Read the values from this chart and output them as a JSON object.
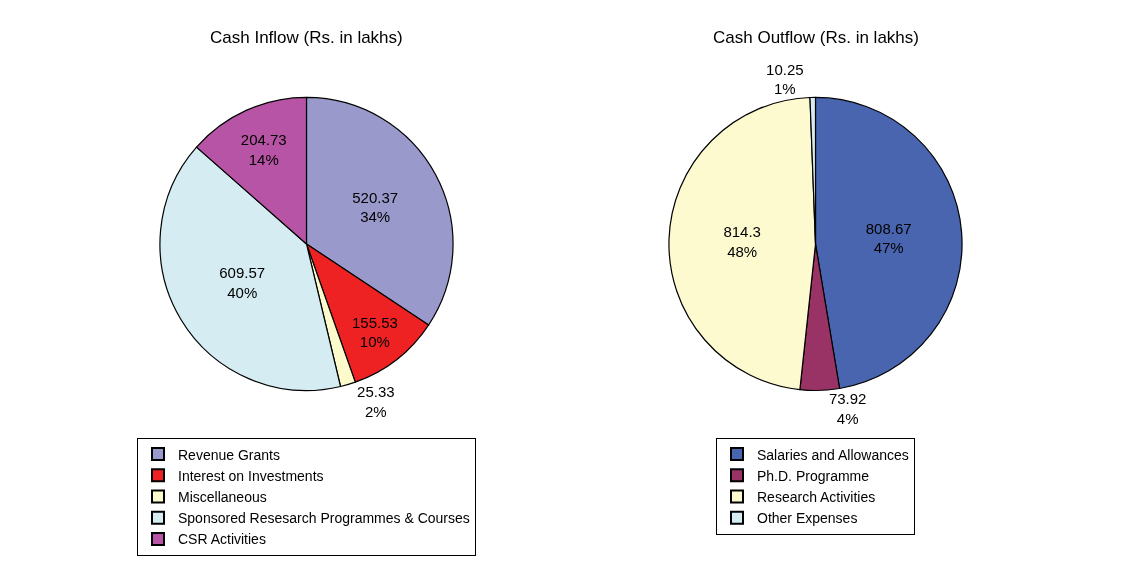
{
  "chart_data": [
    {
      "type": "pie",
      "title": "Cash Inflow (Rs. in lakhs)",
      "categories": [
        "Revenue Grants",
        "Interest on Investments",
        "Miscellaneous",
        "Sponsored Resesarch Programmes & Courses",
        "CSR Activities"
      ],
      "values": [
        520.37,
        155.53,
        25.33,
        609.57,
        204.73
      ],
      "value_labels": [
        "520.37\n34%",
        "155.53\n10%",
        "25.33\n2%",
        "609.57\n40%",
        "204.73\n14%"
      ],
      "colors": [
        "#9999cc",
        "#ee2222",
        "#fdfbcc",
        "#d4ecf2",
        "#b854a6"
      ],
      "legend": "bottom"
    },
    {
      "type": "pie",
      "title": "Cash Outflow (Rs. in lakhs)",
      "categories": [
        "Salaries and Allowances",
        "Ph.D. Programme",
        "Research Activities",
        "Other Expenses"
      ],
      "values": [
        808.67,
        73.92,
        814.3,
        10.25
      ],
      "value_labels": [
        "808.67\n47%",
        "73.92\n4%",
        "814.3\n48%",
        "10.25\n1%"
      ],
      "colors": [
        "#4a65b0",
        "#993366",
        "#fefad0",
        "#d6ecf3"
      ],
      "legend": "bottom"
    }
  ]
}
